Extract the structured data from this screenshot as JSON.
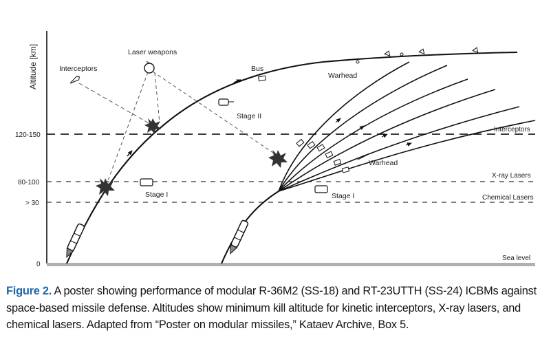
{
  "diagram": {
    "axis_title": "Altitude [km]",
    "altitude_ticks": [
      "120-150",
      "80-100",
      "> 30",
      "0"
    ],
    "band_labels": {
      "interceptors": "Interceptors",
      "xray": "X-ray Lasers",
      "chemical": "Chemical Lasers",
      "sea": "Sea level"
    },
    "annotations": {
      "laser_weapons": "Laser weapons",
      "interceptors_left": "Interceptors",
      "bus": "Bus",
      "warhead_top": "Warhead",
      "stage2": "Stage II",
      "stage1_left": "Stage I",
      "stage1_right": "Stage I",
      "warhead_mid": "Warhead"
    }
  },
  "caption": {
    "label": "Figure 2.",
    "text": " A poster showing performance of modular R-36M2 (SS-18) and RT-23UTTH (SS-24) ICBMs against space-based missile defense. Altitudes show minimum kill altitude for kinetic interceptors, X-ray lasers, and chemical lasers. Adapted from “Poster on modular missiles,” Kataev Archive, Box 5."
  }
}
